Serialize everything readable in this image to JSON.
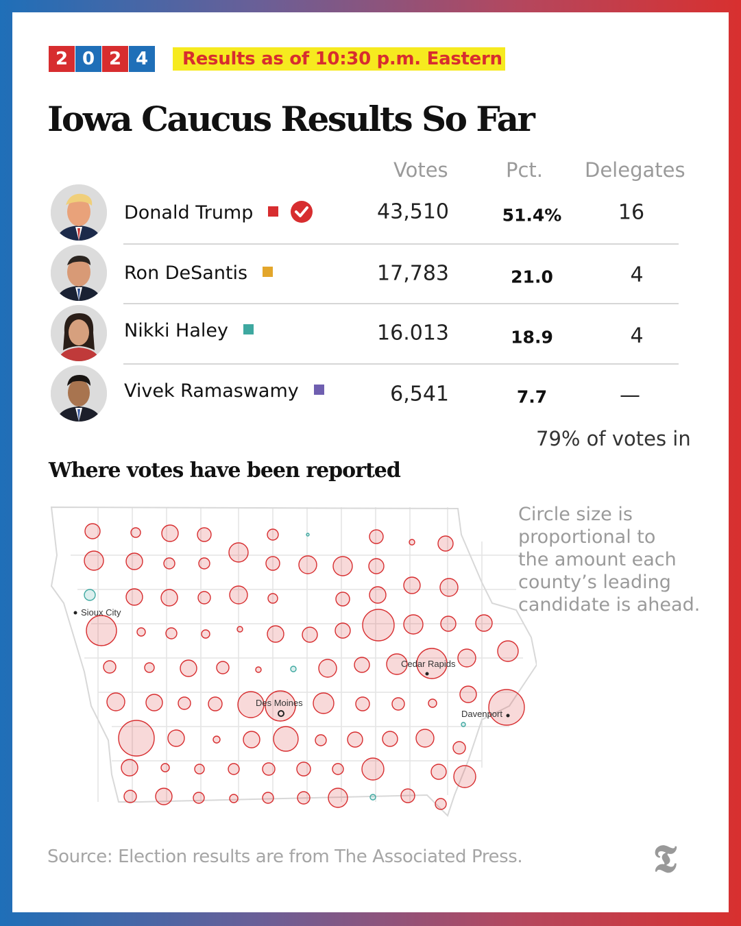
{
  "badge": {
    "digits": [
      "2",
      "0",
      "2",
      "4"
    ]
  },
  "status": "Results as of 10:30 p.m. Eastern",
  "title": "Iowa Caucus Results So Far",
  "columns": {
    "votes": "Votes",
    "pct": "Pct.",
    "delegates": "Delegates"
  },
  "candidates": [
    {
      "name": "Donald Trump",
      "color": "#d72d2f",
      "winner": true,
      "votes": "43,510",
      "pct": "51.4%",
      "delegates": "16"
    },
    {
      "name": "Ron DeSantis",
      "color": "#e3a62b",
      "winner": false,
      "votes": "17,783",
      "pct": "21.0",
      "delegates": "4"
    },
    {
      "name": "Nikki Haley",
      "color": "#3ea8a0",
      "winner": false,
      "votes": "16.013",
      "pct": "18.9",
      "delegates": "4"
    },
    {
      "name": "Vivek Ramaswamy",
      "color": "#6f5fb0",
      "winner": false,
      "votes": "6,541",
      "pct": "7.7",
      "delegates": "—"
    }
  ],
  "reported": "79% of votes in",
  "map_section": {
    "heading": "Where votes have been reported",
    "cities": [
      "Sioux City",
      "Cedar Rapids",
      "Des Moines",
      "Davenport"
    ],
    "note_lines": [
      "Circle size is",
      "proportional to",
      "the amount each",
      "county’s leading",
      "candidate is ahead."
    ]
  },
  "source": "Source: Election results are from The Associated Press.",
  "logo": "𝕿"
}
